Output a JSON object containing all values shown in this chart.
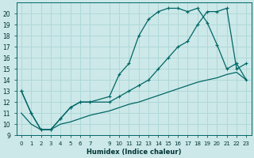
{
  "xlabel": "Humidex (Indice chaleur)",
  "bg_color": "#cce8e8",
  "grid_color": "#b0d8d8",
  "line_color": "#006666",
  "xlim": [
    -0.5,
    23.5
  ],
  "ylim": [
    9,
    21
  ],
  "xticks": [
    0,
    1,
    2,
    3,
    4,
    5,
    6,
    7,
    9,
    10,
    11,
    12,
    13,
    14,
    15,
    16,
    17,
    18,
    19,
    20,
    21,
    22,
    23
  ],
  "xtick_labels": [
    "0",
    "1",
    "2",
    "3",
    "4",
    "5",
    "6",
    "7",
    "9",
    "10",
    "11",
    "12",
    "13",
    "14",
    "15",
    "16",
    "17",
    "18",
    "19",
    "20",
    "21",
    "22",
    "23"
  ],
  "yticks": [
    9,
    10,
    11,
    12,
    13,
    14,
    15,
    16,
    17,
    18,
    19,
    20
  ],
  "line1_x": [
    0,
    1,
    2,
    3,
    4,
    5,
    6,
    7,
    9,
    10,
    11,
    12,
    13,
    14,
    15,
    16,
    17,
    18,
    19,
    20,
    21,
    22,
    23
  ],
  "line1_y": [
    11.0,
    10.0,
    9.5,
    9.5,
    10.0,
    10.2,
    10.5,
    10.8,
    11.2,
    11.5,
    11.8,
    12.0,
    12.3,
    12.6,
    12.9,
    13.2,
    13.5,
    13.8,
    14.0,
    14.2,
    14.5,
    14.7,
    14.0
  ],
  "line2_x": [
    0,
    1,
    2,
    3,
    4,
    5,
    6,
    7,
    9,
    10,
    11,
    12,
    13,
    14,
    15,
    16,
    17,
    18,
    19,
    20,
    21,
    22,
    23
  ],
  "line2_y": [
    13.0,
    11.0,
    9.5,
    9.5,
    10.5,
    11.5,
    12.0,
    12.0,
    12.0,
    12.5,
    13.0,
    13.5,
    14.0,
    15.0,
    16.0,
    17.0,
    17.5,
    19.0,
    20.2,
    20.2,
    20.5,
    15.0,
    15.5
  ],
  "line3_x": [
    0,
    1,
    2,
    3,
    4,
    5,
    6,
    7,
    9,
    10,
    11,
    12,
    13,
    14,
    15,
    16,
    17,
    18,
    19,
    20,
    21,
    22,
    23
  ],
  "line3_y": [
    13.0,
    11.0,
    9.5,
    9.5,
    10.5,
    11.5,
    12.0,
    12.0,
    12.5,
    14.5,
    15.5,
    18.0,
    19.5,
    20.2,
    20.5,
    20.5,
    20.2,
    20.5,
    19.2,
    17.2,
    15.0,
    15.5,
    14.0
  ]
}
